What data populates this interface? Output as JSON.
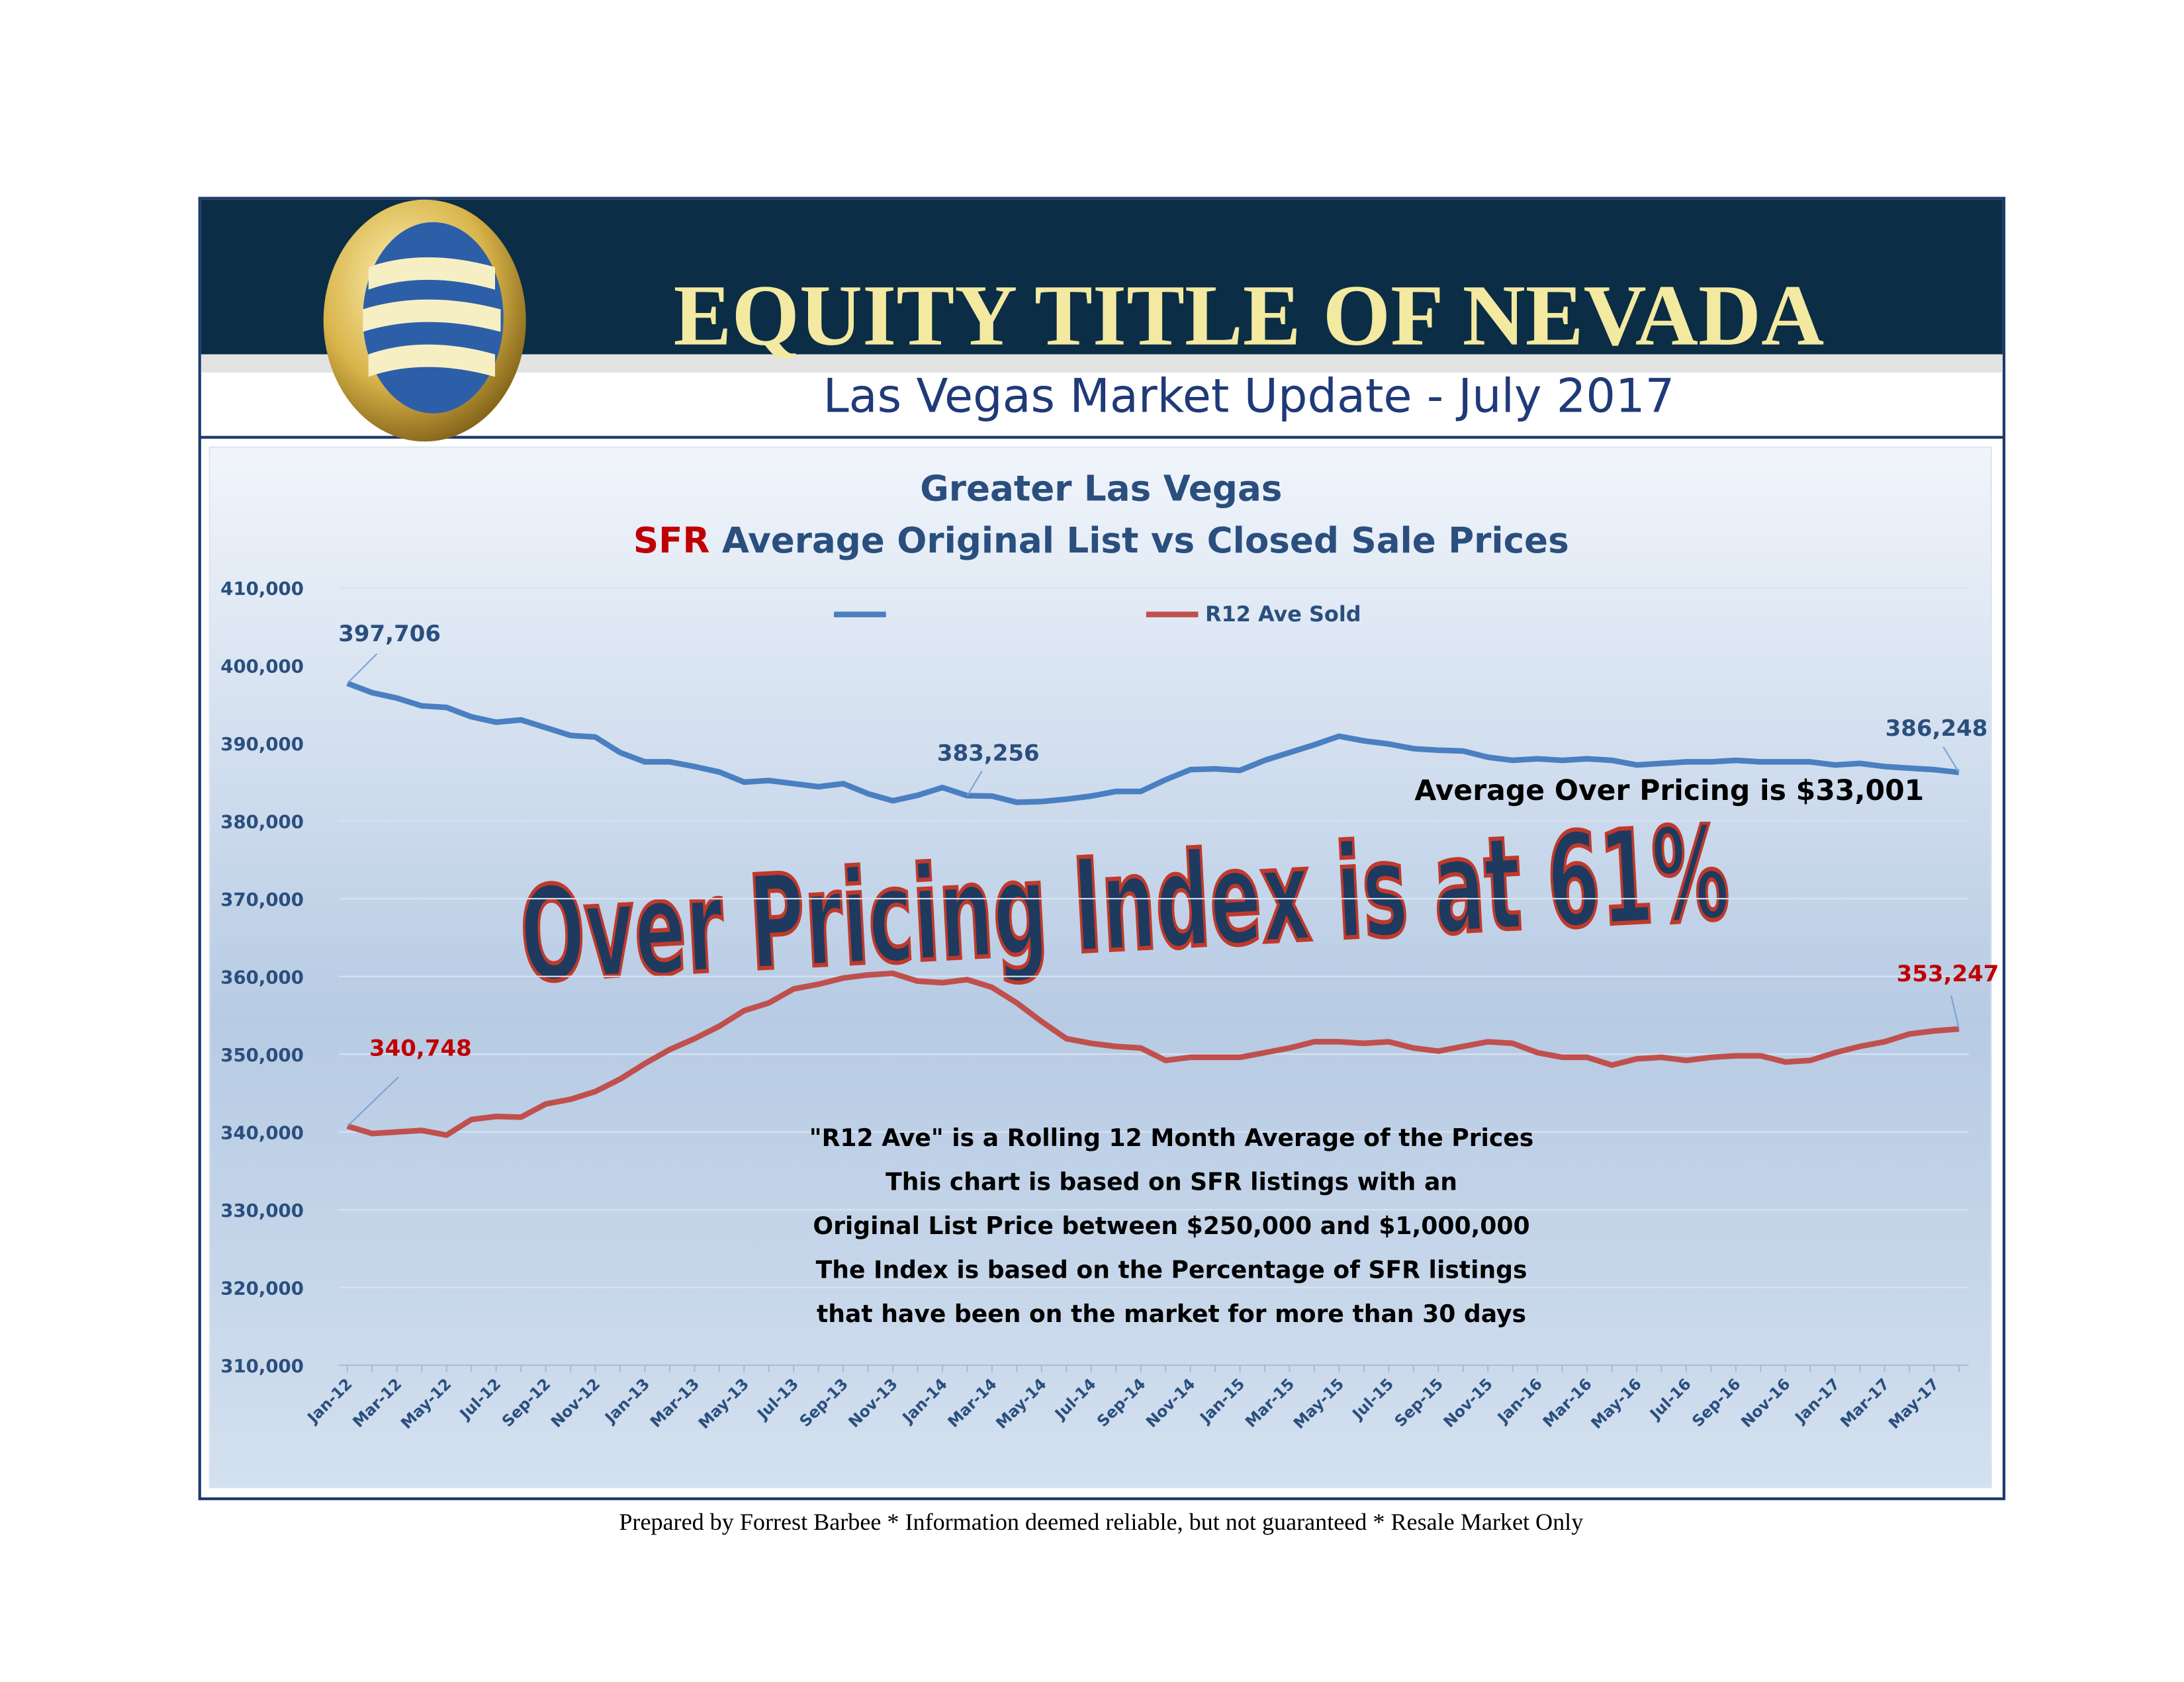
{
  "header": {
    "title": "EQUITY TITLE OF NEVADA",
    "subtitle": "Las Vegas Market Update - July 2017"
  },
  "chart_data": {
    "type": "line",
    "title": "Greater Las Vegas",
    "subtitle": {
      "highlight": "SFR",
      "text": "Average Original List vs Closed Sale Prices"
    },
    "categories": [
      "Jan-12",
      null,
      "Mar-12",
      null,
      "May-12",
      null,
      "Jul-12",
      null,
      "Sep-12",
      null,
      "Nov-12",
      null,
      "Jan-13",
      null,
      "Mar-13",
      null,
      "May-13",
      null,
      "Jul-13",
      null,
      "Sep-13",
      null,
      "Nov-13",
      null,
      "Jan-14",
      null,
      "Mar-14",
      null,
      "May-14",
      null,
      "Jul-14",
      null,
      "Sep-14",
      null,
      "Nov-14",
      null,
      "Jan-15",
      null,
      "Mar-15",
      null,
      "May-15",
      null,
      "Jul-15",
      null,
      "Sep-15",
      null,
      "Nov-15",
      null,
      "Jan-16",
      null,
      "Mar-16",
      null,
      "May-16",
      null,
      "Jul-16",
      null,
      "Sep-16",
      null,
      "Nov-16",
      null,
      "Jan-17",
      null,
      "Mar-17",
      null,
      "May-17",
      null
    ],
    "series": [
      {
        "color": "#4a7fc1",
        "values": [
          397706,
          396500,
          395800,
          394800,
          394600,
          393400,
          392700,
          393000,
          392000,
          391000,
          390800,
          388800,
          387600,
          387600,
          387000,
          386300,
          385000,
          385200,
          384800,
          384400,
          384800,
          383500,
          382600,
          383300,
          384300,
          383256,
          383200,
          382400,
          382500,
          382800,
          383200,
          383800,
          383800,
          385300,
          386600,
          386700,
          386500,
          387800,
          388800,
          389800,
          390900,
          390300,
          389900,
          389300,
          389100,
          389000,
          388200,
          387800,
          388000,
          387800,
          388000,
          387800,
          387200,
          387400,
          387600,
          387600,
          387800,
          387600,
          387600,
          387600,
          387200,
          387400,
          387000,
          386800,
          386600,
          386248
        ],
        "value_labels": [
          "397,706",
          null,
          null,
          null,
          null,
          null,
          null,
          null,
          null,
          null,
          null,
          null,
          null,
          null,
          null,
          null,
          null,
          null,
          null,
          null,
          null,
          null,
          null,
          null,
          null,
          "383,256",
          null,
          null,
          null,
          null,
          null,
          null,
          null,
          null,
          null,
          null,
          null,
          null,
          null,
          null,
          null,
          null,
          null,
          null,
          null,
          null,
          null,
          null,
          null,
          null,
          null,
          null,
          null,
          null,
          null,
          null,
          null,
          null,
          null,
          null,
          null,
          null,
          null,
          null,
          null,
          "386,248"
        ]
      },
      {
        "name": "R12 Ave Sold",
        "color": "#c0504d",
        "values": [
          340748,
          339800,
          340000,
          340200,
          339600,
          341600,
          342000,
          341900,
          343600,
          344200,
          345200,
          346800,
          348800,
          350600,
          352000,
          353600,
          355600,
          356600,
          358400,
          359000,
          359800,
          360200,
          360400,
          359400,
          359200,
          359600,
          358600,
          356600,
          354200,
          352000,
          351400,
          351000,
          350800,
          349200,
          349600,
          349600,
          349600,
          350200,
          350800,
          351600,
          351600,
          351400,
          351600,
          350800,
          350400,
          351000,
          351600,
          351400,
          350200,
          349600,
          349600,
          348600,
          349400,
          349600,
          349200,
          349600,
          349800,
          349800,
          349000,
          349200,
          350200,
          351000,
          351600,
          352600,
          353000,
          353247
        ],
        "value_labels": [
          "340,748",
          null,
          null,
          null,
          null,
          null,
          null,
          null,
          null,
          null,
          null,
          null,
          null,
          null,
          null,
          null,
          null,
          null,
          null,
          null,
          null,
          null,
          null,
          null,
          null,
          null,
          null,
          null,
          null,
          null,
          null,
          null,
          null,
          null,
          null,
          null,
          null,
          null,
          null,
          null,
          null,
          null,
          null,
          null,
          null,
          null,
          null,
          null,
          null,
          null,
          null,
          null,
          null,
          null,
          null,
          null,
          null,
          null,
          null,
          null,
          null,
          null,
          null,
          null,
          null,
          "353,247"
        ]
      }
    ],
    "ylim": [
      310000,
      410000
    ],
    "yticks": [
      {
        "value": 310000,
        "label": "310,000"
      },
      {
        "value": 320000,
        "label": "320,000"
      },
      {
        "value": 330000,
        "label": "330,000"
      },
      {
        "value": 340000,
        "label": "340,000"
      },
      {
        "value": 350000,
        "label": "350,000"
      },
      {
        "value": 360000,
        "label": "360,000"
      },
      {
        "value": 370000,
        "label": "370,000"
      },
      {
        "value": 380000,
        "label": "380,000"
      },
      {
        "value": 390000,
        "label": "390,000"
      },
      {
        "value": 400000,
        "label": "400,000"
      },
      {
        "value": 410000,
        "label": "410,000"
      }
    ],
    "grid": true,
    "legend": "top",
    "annotations": {
      "headline": "Over Pricing Index is at 61%",
      "over_pricing": "Average Over Pricing is $33,001",
      "notes": [
        "\"R12 Ave\" is a Rolling 12 Month Average of the Prices",
        "This chart is based on SFR listings with an",
        "Original List Price between $250,000 and $1,000,000",
        "The Index is based on the Percentage of SFR listings",
        "that have been on the market for more than 30 days"
      ]
    }
  },
  "footer": "Prepared by Forrest Barbee * Information deemed reliable, but not guaranteed * Resale Market Only"
}
